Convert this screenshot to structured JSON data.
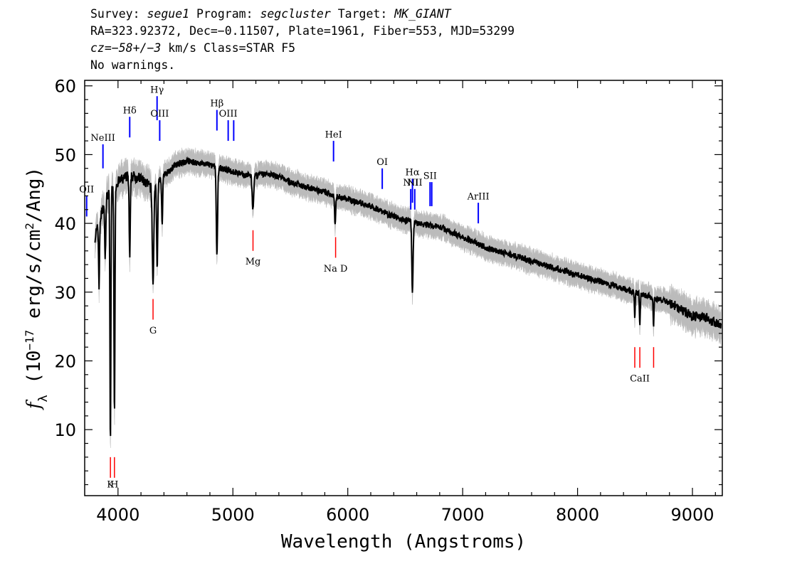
{
  "header": {
    "line1": {
      "survey_label": "Survey: ",
      "survey": "segue1",
      "program_label": " Program: ",
      "program": "segcluster",
      "target_label": " Target: ",
      "target": "MK_GIANT"
    },
    "line2": "RA=323.92372, Dec=−0.11507, Plate=1961, Fiber=553, MJD=53299",
    "line3": {
      "cz": "cz",
      "velocity": "=−58+/−3",
      "suffix": " km/s Class=STAR F5"
    },
    "line4": "No warnings."
  },
  "chart_data": {
    "type": "line",
    "title": "",
    "xlabel": "Wavelength (Angstroms)",
    "ylabel": "f_λ (10^-17 erg/s/cm^2/Ang)",
    "xlim": [
      3710,
      9260
    ],
    "ylim": [
      0.4,
      60.8
    ],
    "grid": false,
    "x_ticks": [
      4000,
      5000,
      6000,
      7000,
      8000,
      9000
    ],
    "y_ticks": [
      10,
      20,
      30,
      40,
      50,
      60
    ],
    "colors": {
      "flux": "#000000",
      "noise": "#bbbbbb",
      "emission": "#0000ff",
      "absorption": "#ff0000"
    },
    "continuum": {
      "x": [
        3800,
        3850,
        3900,
        4000,
        4100,
        4200,
        4300,
        4400,
        4500,
        4600,
        4700,
        4800,
        4900,
        5000,
        5100,
        5200,
        5300,
        5400,
        5500,
        5600,
        5700,
        5800,
        5900,
        6000,
        6200,
        6400,
        6600,
        6800,
        7000,
        7200,
        7400,
        7600,
        7800,
        8000,
        8200,
        8400,
        8600,
        8800,
        9000,
        9100,
        9250
      ],
      "y": [
        38,
        41,
        44,
        46,
        47,
        46.5,
        45,
        47,
        48.5,
        49,
        48.8,
        48.5,
        48,
        47.5,
        47,
        47,
        47.2,
        46.8,
        46,
        45.5,
        45,
        44.5,
        44,
        43.5,
        42.5,
        41,
        40,
        39.5,
        38,
        36.5,
        35.5,
        34.5,
        33.5,
        32.5,
        31.5,
        30.5,
        29.5,
        28.5,
        26.5,
        26.5,
        25
      ]
    },
    "absorption_features": [
      {
        "x": 3835,
        "depth": 9,
        "width": 6
      },
      {
        "x": 3889,
        "depth": 8,
        "width": 7
      },
      {
        "x": 3934,
        "depth": 37,
        "width": 6
      },
      {
        "x": 3969,
        "depth": 34,
        "width": 6
      },
      {
        "x": 4102,
        "depth": 12,
        "width": 7
      },
      {
        "x": 4305,
        "depth": 14,
        "width": 9
      },
      {
        "x": 4341,
        "depth": 12,
        "width": 7
      },
      {
        "x": 4384,
        "depth": 7,
        "width": 6
      },
      {
        "x": 4861,
        "depth": 13,
        "width": 8
      },
      {
        "x": 5175,
        "depth": 5,
        "width": 10
      },
      {
        "x": 5890,
        "depth": 4,
        "width": 7
      },
      {
        "x": 6563,
        "depth": 10,
        "width": 8
      },
      {
        "x": 8498,
        "depth": 4,
        "width": 5
      },
      {
        "x": 8542,
        "depth": 5,
        "width": 5
      },
      {
        "x": 8662,
        "depth": 4,
        "width": 5
      }
    ],
    "line_markers": [
      {
        "label": "OII",
        "x": 3727,
        "type": "emission",
        "y_bottom": 41,
        "y_top": 44,
        "label_y": 44.5
      },
      {
        "label": "NeIII",
        "x": 3869,
        "type": "emission",
        "y_bottom": 48,
        "y_top": 51.5,
        "label_y": 52
      },
      {
        "label": "Hδ",
        "x": 4102,
        "type": "emission",
        "y_bottom": 52.5,
        "y_top": 55.5,
        "label_y": 56
      },
      {
        "label": "Hγ",
        "x": 4340,
        "type": "emission",
        "y_bottom": 55,
        "y_top": 58.5,
        "label_y": 59
      },
      {
        "label": "OIII",
        "x": 4363,
        "type": "emission",
        "y_bottom": 52,
        "y_top": 55,
        "label_y": 55.5
      },
      {
        "label": "Hβ",
        "x": 4861,
        "type": "emission",
        "y_bottom": 53.5,
        "y_top": 56.5,
        "label_y": 57
      },
      {
        "label": "OIII",
        "x": 4959,
        "type": "emission",
        "y_bottom": 52,
        "y_top": 55,
        "label_y": 55.5
      },
      {
        "label": "",
        "x": 5007,
        "type": "emission",
        "y_bottom": 52,
        "y_top": 55,
        "label_y": 55.5
      },
      {
        "label": "HeI",
        "x": 5876,
        "type": "emission",
        "y_bottom": 49,
        "y_top": 52,
        "label_y": 52.5
      },
      {
        "label": "OI",
        "x": 6300,
        "type": "emission",
        "y_bottom": 45,
        "y_top": 48,
        "label_y": 48.5
      },
      {
        "label": "NII",
        "x": 6548,
        "type": "emission",
        "y_bottom": 42,
        "y_top": 45,
        "label_y": 45.5
      },
      {
        "label": "Hα",
        "x": 6563,
        "type": "emission",
        "y_bottom": 43,
        "y_top": 46.5,
        "label_y": 47
      },
      {
        "label": "NII",
        "x": 6583,
        "type": "emission",
        "y_bottom": 42,
        "y_top": 45,
        "label_y": 45.5
      },
      {
        "label": "SII",
        "x": 6716,
        "type": "emission",
        "y_bottom": 42.5,
        "y_top": 46,
        "label_y": 46.5
      },
      {
        "label": "",
        "x": 6731,
        "type": "emission",
        "y_bottom": 42.5,
        "y_top": 46,
        "label_y": 46.5
      },
      {
        "label": "ArIII",
        "x": 7136,
        "type": "emission",
        "y_bottom": 40,
        "y_top": 43,
        "label_y": 43.5
      },
      {
        "label": "K",
        "x": 3934,
        "type": "absorption",
        "y_bottom": 3,
        "y_top": 6,
        "label_y": 1.6
      },
      {
        "label": "H",
        "x": 3969,
        "type": "absorption",
        "y_bottom": 3,
        "y_top": 6,
        "label_y": 1.6
      },
      {
        "label": "G",
        "x": 4305,
        "type": "absorption",
        "y_bottom": 26,
        "y_top": 29,
        "label_y": 24
      },
      {
        "label": "Mg",
        "x": 5175,
        "type": "absorption",
        "y_bottom": 36,
        "y_top": 39,
        "label_y": 34
      },
      {
        "label": "Na D",
        "x": 5894,
        "type": "absorption",
        "y_bottom": 35,
        "y_top": 38,
        "label_y": 33
      },
      {
        "label": "",
        "x": 8498,
        "type": "absorption",
        "y_bottom": 19,
        "y_top": 22,
        "label_y": 17
      },
      {
        "label": "CaII",
        "x": 8542,
        "type": "absorption",
        "y_bottom": 19,
        "y_top": 22,
        "label_y": 17
      },
      {
        "label": "",
        "x": 8662,
        "type": "absorption",
        "y_bottom": 19,
        "y_top": 22,
        "label_y": 17
      }
    ]
  }
}
